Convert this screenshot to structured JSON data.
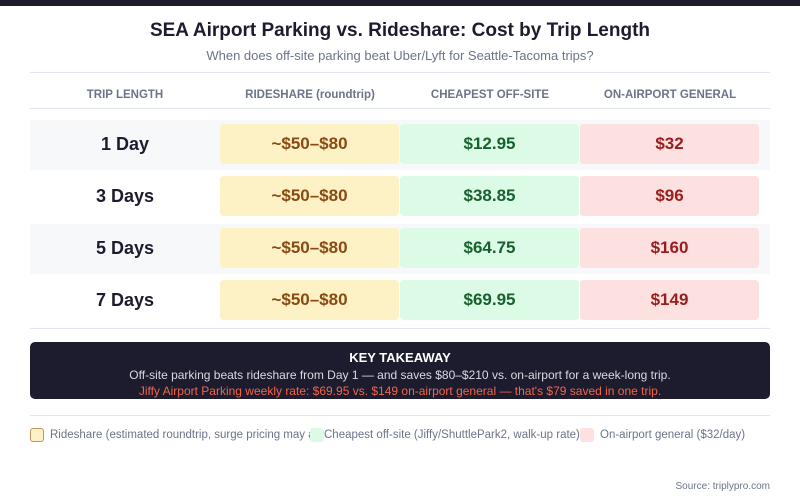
{
  "chart_data": {
    "type": "table",
    "title": "SEA Airport Parking vs. Rideshare: Cost by Trip Length",
    "subtitle": "When does off-site parking beat Uber/Lyft for Seattle-Tacoma trips?",
    "columns": [
      "TRIP LENGTH",
      "RIDESHARE (roundtrip)",
      "CHEAPEST OFF-SITE",
      "ON-AIRPORT GENERAL"
    ],
    "rows": [
      {
        "trip": "1 Day",
        "rideshare": "~$50–$80",
        "offsite": "$12.95",
        "onairport": "$32"
      },
      {
        "trip": "3 Days",
        "rideshare": "~$50–$80",
        "offsite": "$38.85",
        "onairport": "$96"
      },
      {
        "trip": "5 Days",
        "rideshare": "~$50–$80",
        "offsite": "$64.75",
        "onairport": "$160"
      },
      {
        "trip": "7 Days",
        "rideshare": "~$50–$80",
        "offsite": "$69.95",
        "onairport": "$149"
      }
    ],
    "colors": {
      "rideshare": "#fdf1c6",
      "offsite": "#dcfbe6",
      "onairport": "#fde0e0"
    }
  },
  "takeaway": {
    "heading": "KEY TAKEAWAY",
    "line1": "Off-site parking beats rideshare from Day 1 — and saves $80–$210 vs. on-airport for a week-long trip.",
    "line2": "Jiffy Airport Parking weekly rate: $69.95 vs. $149 on-airport general — that's $79 saved in one trip."
  },
  "legend": [
    "Rideshare (estimated roundtrip, surge pricing may apply)",
    "Cheapest off-site (Jiffy/ShuttlePark2, walk-up rate)",
    "On-airport general ($32/day)"
  ],
  "source": "Source: triplypro.com"
}
